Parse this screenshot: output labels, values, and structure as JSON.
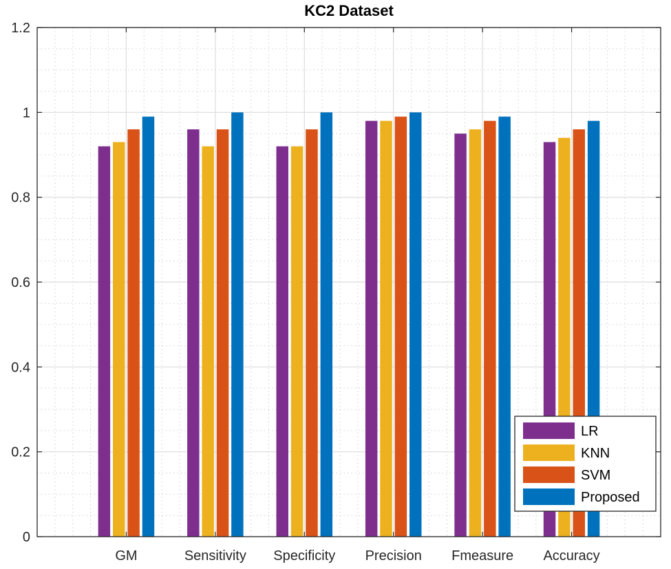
{
  "chart_data": {
    "type": "bar",
    "title": "KC2 Dataset",
    "xlabel": "",
    "ylabel": "",
    "ylim": [
      0,
      1.2
    ],
    "yticks": [
      0,
      0.2,
      0.4,
      0.6,
      0.8,
      1,
      1.2
    ],
    "ytick_labels": [
      "0",
      "0.2",
      "0.4",
      "0.6",
      "0.8",
      "1",
      "1.2"
    ],
    "grid": true,
    "minor_grid": true,
    "legend_position": "bottom-right",
    "categories": [
      "GM",
      "Sensitivity",
      "Specificity",
      "Precision",
      "Fmeasure",
      "Accuracy"
    ],
    "series": [
      {
        "name": "LR",
        "color": "#7E2F8E",
        "values": [
          0.92,
          0.96,
          0.92,
          0.98,
          0.95,
          0.93
        ]
      },
      {
        "name": "KNN",
        "color": "#EDB120",
        "values": [
          0.93,
          0.92,
          0.92,
          0.98,
          0.96,
          0.94
        ]
      },
      {
        "name": "SVM",
        "color": "#D95319",
        "values": [
          0.96,
          0.96,
          0.96,
          0.99,
          0.98,
          0.96
        ]
      },
      {
        "name": "Proposed",
        "color": "#0072BD",
        "values": [
          0.99,
          1.0,
          1.0,
          1.0,
          0.99,
          0.98
        ]
      }
    ]
  }
}
